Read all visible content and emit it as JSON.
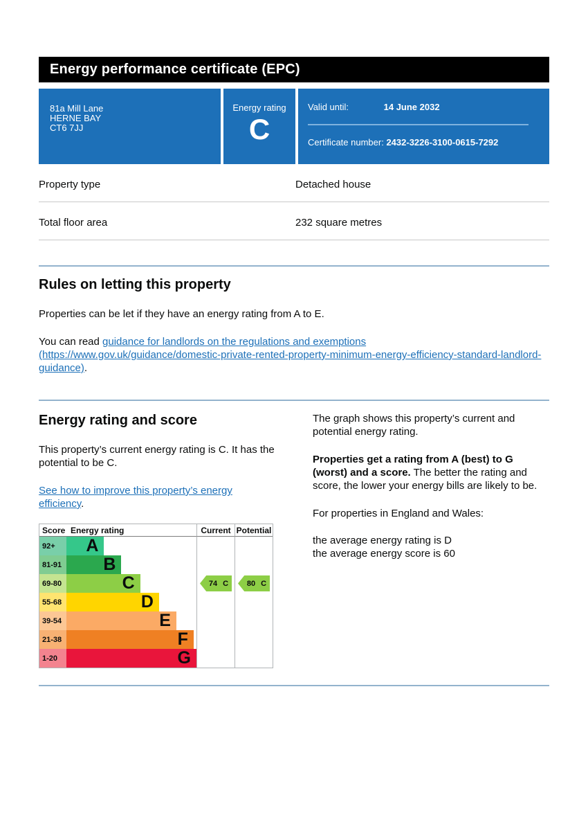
{
  "page": {
    "title": "Energy performance certificate (EPC)"
  },
  "colors": {
    "panel_blue": "#1d70b8",
    "divider_blue": "#93b3cd",
    "link_blue": "#1d70b8",
    "arrow_green": "#8dce46"
  },
  "summary": {
    "address_lines": [
      "81a Mill Lane",
      "HERNE BAY",
      "CT6 7JJ"
    ],
    "rating_label": "Energy rating",
    "rating_letter": "C",
    "valid_until_label": "Valid until:",
    "valid_until_value": "14 June 2032",
    "certificate_number_label": "Certificate number:",
    "certificate_number_value": "2432-3226-3100-0615-7292"
  },
  "facts": [
    {
      "label": "Property type",
      "value": "Detached house"
    },
    {
      "label": "Total floor area",
      "value": "232 square metres"
    }
  ],
  "rules_section": {
    "heading": "Rules on letting this property",
    "paragraph1": "Properties can be let if they have an energy rating from A to E.",
    "paragraph2_prefix": "You can read ",
    "link_text_part1": "guidance for landlords on the regulations and exemptions",
    "link_text_part2": "(https://www.gov.uk/guidance/domestic-private-rented-property-minimum-energy-efficiency-standard-landlord-guidance)",
    "paragraph2_suffix": "."
  },
  "rating_section": {
    "heading": "Energy rating and score",
    "paragraph1": "This property’s current energy rating is C. It has the potential to be C.",
    "link_text": "See how to improve this property’s energy efficiency",
    "link_suffix": ".",
    "right_paragraph1": "The graph shows this property’s current and potential energy rating.",
    "right_paragraph2_bold": "Properties get a rating from A (best) to G (worst) and a score.",
    "right_paragraph2_rest": " The better the rating and score, the lower your energy bills are likely to be.",
    "right_paragraph3": "For properties in England and Wales:",
    "average_line1": "the average energy rating is D",
    "average_line2": "the average energy score is 60"
  },
  "chart_data": {
    "type": "bar",
    "title": "Energy rating and score chart",
    "columns": [
      "Score",
      "Energy rating",
      "Current",
      "Potential"
    ],
    "bands": [
      {
        "score": "92+",
        "letter": "A",
        "color": "#35c78a",
        "score_bg": "#79cfa9",
        "width_pct": 24
      },
      {
        "score": "81-91",
        "letter": "B",
        "color": "#2ba84e",
        "score_bg": "#80cc92",
        "width_pct": 35
      },
      {
        "score": "69-80",
        "letter": "C",
        "color": "#8dce46",
        "score_bg": "#c4e491",
        "width_pct": 47
      },
      {
        "score": "55-68",
        "letter": "D",
        "color": "#ffd500",
        "score_bg": "#ffe470",
        "width_pct": 59
      },
      {
        "score": "39-54",
        "letter": "E",
        "color": "#fbaa65",
        "score_bg": "#fcc795",
        "width_pct": 70
      },
      {
        "score": "21-38",
        "letter": "F",
        "color": "#ef8023",
        "score_bg": "#f8b173",
        "width_pct": 81
      },
      {
        "score": "1-20",
        "letter": "G",
        "color": "#e9153b",
        "score_bg": "#f3838f",
        "width_pct": 94
      }
    ],
    "current": {
      "value": "74",
      "letter": "C",
      "band": "C",
      "color": "#8dce46"
    },
    "potential": {
      "value": "80",
      "letter": "C",
      "band": "C",
      "color": "#8dce46"
    }
  }
}
